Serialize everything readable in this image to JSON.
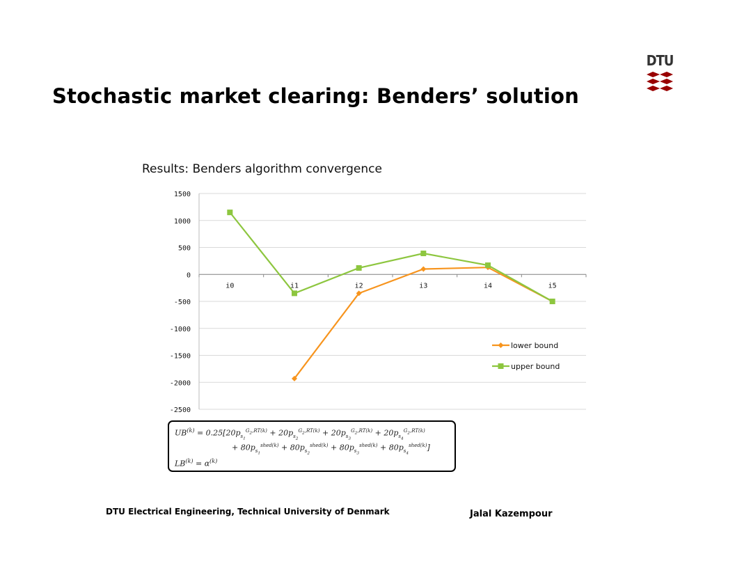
{
  "slide": {
    "title": "Stochastic market clearing: Benders’ solution",
    "logo_text": "DTU",
    "footer_left": "DTU Electrical Engineering, Technical University of Denmark",
    "footer_right": "Jalal Kazempour"
  },
  "colors": {
    "lower_bound": "#F7941D",
    "upper_bound": "#8DC63F",
    "logo_red": "#990000",
    "gridline": "#d9d9d9"
  },
  "chart_data": {
    "type": "line",
    "title": "Results: Benders algorithm convergence",
    "categories": [
      "i0",
      "i1",
      "i2",
      "i3",
      "i4",
      "i5"
    ],
    "series": [
      {
        "name": "lower bound",
        "marker": "diamond",
        "values": [
          null,
          -1930,
          -350,
          100,
          130,
          -500
        ]
      },
      {
        "name": "upper bound",
        "marker": "square",
        "values": [
          1150,
          -350,
          120,
          390,
          170,
          -500
        ]
      }
    ],
    "ylim": [
      -2500,
      1500
    ],
    "yticks": [
      "1500",
      "1000",
      "500",
      "0",
      "-500",
      "-1000",
      "-1500",
      "-2000",
      "-2500"
    ],
    "grid": true,
    "legend_position": "right"
  },
  "equations": {
    "ub_line1": "UB(k) = 0.25[20p_s1^(G2,RT(k)) + 20p_s2^(G2,RT(k)) + 20p_s3^(G2,RT(k)) + 20p_s4^(G2,RT(k))",
    "ub_line2": "+ 80p_s1^(shed(k)) + 80p_s2^(shed(k)) + 80p_s3^(shed(k)) + 80p_s4^(shed(k))]",
    "lb_line": "LB(k) = α(k)"
  }
}
